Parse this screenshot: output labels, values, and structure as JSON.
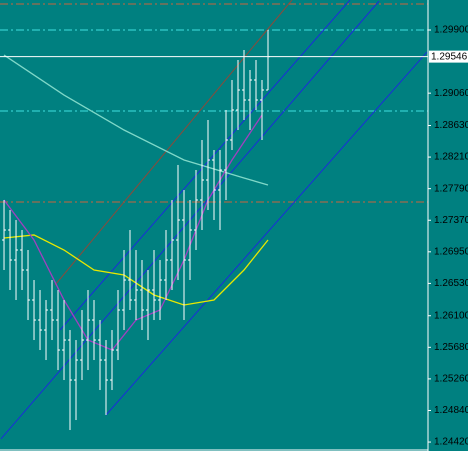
{
  "chart_data": {
    "type": "ohlc",
    "background": "#008080",
    "bar_color": "#ffffff",
    "ylim": [
      1.24301,
      1.30299
    ],
    "xlim": [
      -0.67,
      70.67
    ],
    "yticks": [
      {
        "value": 1.299,
        "label": "1.29900"
      },
      {
        "value": 1.2906,
        "label": "1.29060"
      },
      {
        "value": 1.2863,
        "label": "1.28630"
      },
      {
        "value": 1.2821,
        "label": "1.28210"
      },
      {
        "value": 1.2779,
        "label": "1.27790"
      },
      {
        "value": 1.2737,
        "label": "1.27370"
      },
      {
        "value": 1.2695,
        "label": "1.26950"
      },
      {
        "value": 1.2653,
        "label": "1.26530"
      },
      {
        "value": 1.261,
        "label": "1.26100"
      },
      {
        "value": 1.2568,
        "label": "1.25680"
      },
      {
        "value": 1.2526,
        "label": "1.25260"
      },
      {
        "value": 1.2484,
        "label": "1.24840"
      },
      {
        "value": 1.2442,
        "label": "1.24420"
      }
    ],
    "current_price": {
      "value": 1.29546,
      "label": "1.29546"
    },
    "open": [
      1.27107,
      1.2724,
      1.26841,
      1.26974,
      1.26708,
      1.26309,
      1.26043,
      1.2591,
      1.26176,
      1.26043,
      1.25644,
      1.25777,
      1.25245,
      1.25511,
      1.25777,
      1.26043,
      1.25777,
      1.25511,
      1.25245,
      1.25644,
      1.26176,
      1.26575,
      1.26309,
      1.26442,
      1.26176,
      1.26442,
      1.26309,
      1.26575,
      1.26841,
      1.27107,
      1.27373,
      1.26841,
      1.2724,
      1.27639,
      1.27905,
      1.28171,
      1.27772,
      1.28038,
      1.28437,
      1.28836,
      1.29102,
      1.28969,
      1.29235,
      1.28969,
      1.29102
    ],
    "high": [
      1.27639,
      1.27506,
      1.27373,
      1.2724,
      1.26974,
      1.26575,
      1.26442,
      1.26309,
      1.26575,
      1.26442,
      1.26309,
      1.2591,
      1.25777,
      1.26176,
      1.26442,
      1.26309,
      1.26043,
      1.25777,
      1.2591,
      1.26442,
      1.26974,
      1.2724,
      1.26974,
      1.26841,
      1.26708,
      1.26974,
      1.26841,
      1.2724,
      1.27639,
      1.28105,
      1.27772,
      1.27639,
      1.28038,
      1.28437,
      1.28703,
      1.28304,
      1.28304,
      1.28836,
      1.29235,
      1.29501,
      1.29634,
      1.29368,
      1.29501,
      1.29235,
      1.299
    ],
    "low": [
      1.26708,
      1.26442,
      1.26309,
      1.26442,
      1.26043,
      1.25777,
      1.25644,
      1.25511,
      1.25777,
      1.25378,
      1.25245,
      1.2458,
      1.24713,
      1.25245,
      1.25378,
      1.25511,
      1.25112,
      1.2478,
      1.25112,
      1.25511,
      1.2591,
      1.26176,
      1.26043,
      1.2591,
      1.25777,
      1.26043,
      1.26043,
      1.26309,
      1.26442,
      1.26575,
      1.26043,
      1.26575,
      1.26974,
      1.2724,
      1.27506,
      1.27373,
      1.2724,
      1.27639,
      1.28304,
      1.2857,
      1.28703,
      1.2857,
      1.28836,
      1.28437,
      1.29102
    ],
    "close": [
      1.2724,
      1.26841,
      1.26974,
      1.26708,
      1.26309,
      1.26043,
      1.2591,
      1.26176,
      1.26043,
      1.25644,
      1.25777,
      1.25245,
      1.25511,
      1.25777,
      1.26043,
      1.25777,
      1.25511,
      1.25245,
      1.25644,
      1.26176,
      1.26575,
      1.26309,
      1.26442,
      1.26176,
      1.26442,
      1.26309,
      1.26575,
      1.26841,
      1.27107,
      1.27373,
      1.26841,
      1.2724,
      1.27639,
      1.27905,
      1.28171,
      1.27772,
      1.28038,
      1.28437,
      1.28836,
      1.29102,
      1.28969,
      1.29235,
      1.28969,
      1.29102,
      1.29546
    ],
    "series": [
      {
        "color": "#7fd8c8",
        "x": [
          0,
          10,
          20,
          30,
          40,
          44
        ],
        "values": [
          1.29567,
          1.29035,
          1.2857,
          1.28171,
          1.27932,
          1.27838
        ]
      },
      {
        "color": "#e8e800",
        "x": [
          0,
          5,
          10,
          15,
          20,
          25,
          30,
          35,
          40,
          44
        ],
        "values": [
          1.27134,
          1.27174,
          1.26974,
          1.26708,
          1.26642,
          1.26376,
          1.26243,
          1.26309,
          1.26708,
          1.27107
        ]
      },
      {
        "color": "#a040c0",
        "x": [
          0,
          5,
          10,
          14,
          18,
          22,
          26,
          30,
          34,
          38,
          43
        ],
        "values": [
          1.27639,
          1.27107,
          1.26309,
          1.25777,
          1.25644,
          1.26043,
          1.26176,
          1.26841,
          1.27639,
          1.28171,
          1.2877
        ]
      }
    ],
    "trendlines": [
      {
        "color": "#1a2ed8",
        "x": [
          -0.5,
          62.5
        ],
        "values": [
          1.24463,
          1.30284
        ]
      },
      {
        "color": "#1a2ed8",
        "x": [
          17,
          70.5
        ],
        "values": [
          1.2478,
          1.29607
        ]
      },
      {
        "color": "#1a2ed8",
        "x": [
          9.33,
          57.67
        ],
        "values": [
          1.2591,
          1.30299
        ]
      },
      {
        "color": "#8b4a3a",
        "x": [
          8.5,
          48
        ],
        "values": [
          1.26508,
          1.30299
        ]
      }
    ],
    "hlines": [
      {
        "value": 1.30246,
        "color": "#c8643c"
      },
      {
        "value": 1.299,
        "color": "#40e0e0"
      },
      {
        "value": 1.28823,
        "color": "#40e0e0"
      },
      {
        "value": 1.27612,
        "color": "#c8643c"
      }
    ]
  }
}
